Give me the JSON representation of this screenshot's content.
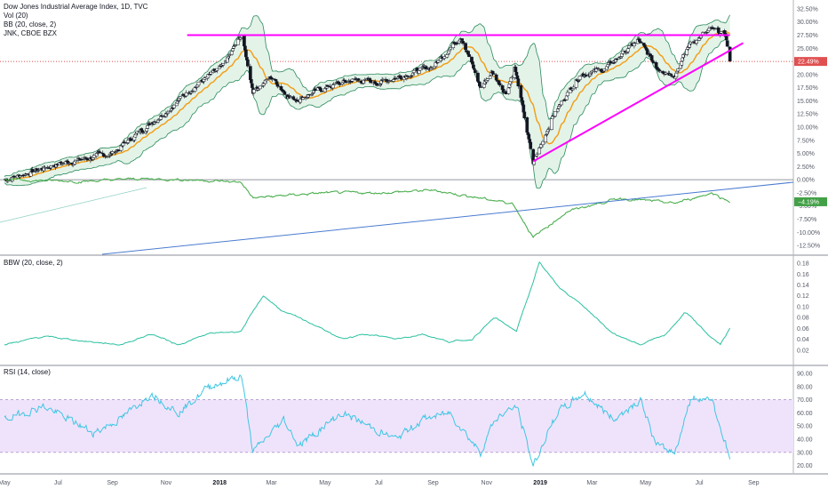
{
  "legend": {
    "title": "Dow Jones Industrial Average Index, 1D, TVC",
    "vol": "Vol (20)",
    "bb": "BB (20, close, 2)",
    "jnk": "JNK, CBOE BZX",
    "bbw": "BBW (20, close, 2)",
    "rsi": "RSI (14, close)"
  },
  "badges": {
    "main": "22.49%",
    "jnk": "−4.19%"
  },
  "colors": {
    "up": "#26a69a",
    "down": "#ef5350",
    "candle": "#131722",
    "bb_line": "#2a8a5c",
    "bb_fill": "#e3f3e8",
    "basis": "#f39c12",
    "jnk": "#4caf50",
    "trend": "#ff00ff",
    "blue_line": "#4a7bd0",
    "bbw": "#2bc0a0",
    "rsi": "#3fc6e3",
    "rsi_band": "#efe3fb",
    "price_dash": "#e05050",
    "badge_main": "#e05050",
    "badge_jnk": "#43a047"
  },
  "chart_data": [
    {
      "type": "candlestick",
      "panel": "main",
      "y_unit": "% change",
      "ylim": [
        -13.5,
        33.5
      ],
      "y_ticks": [
        "32.50%",
        "30.00%",
        "27.50%",
        "25.00%",
        "22.50%",
        "20.00%",
        "17.50%",
        "15.00%",
        "12.50%",
        "10.00%",
        "7.50%",
        "5.00%",
        "2.50%",
        "0.00%",
        "-2.50%",
        "-5.00%",
        "-7.50%",
        "-10.00%",
        "-12.50%"
      ],
      "x_ticks": [
        "May",
        "Jul",
        "Sep",
        "Nov",
        "2018",
        "Mar",
        "May",
        "Jul",
        "Sep",
        "Nov",
        "2019",
        "Mar",
        "May",
        "Jul",
        "Sep"
      ],
      "x_bold_ticks": [
        "2018",
        "2019"
      ],
      "close_path": [
        [
          "2017-05-01",
          0.0
        ],
        [
          "2017-06-01",
          1.5
        ],
        [
          "2017-07-01",
          3.0
        ],
        [
          "2017-08-01",
          4.0
        ],
        [
          "2017-09-01",
          5.0
        ],
        [
          "2017-10-01",
          9.0
        ],
        [
          "2017-11-01",
          13.0
        ],
        [
          "2017-12-01",
          17.5
        ],
        [
          "2018-01-05",
          21.5
        ],
        [
          "2018-01-26",
          27.5
        ],
        [
          "2018-02-08",
          17.0
        ],
        [
          "2018-03-01",
          19.5
        ],
        [
          "2018-03-23",
          15.5
        ],
        [
          "2018-04-02",
          15.5
        ],
        [
          "2018-05-01",
          17.5
        ],
        [
          "2018-06-01",
          19.0
        ],
        [
          "2018-07-01",
          18.5
        ],
        [
          "2018-08-01",
          20.0
        ],
        [
          "2018-09-01",
          21.5
        ],
        [
          "2018-10-03",
          27.5
        ],
        [
          "2018-10-25",
          17.5
        ],
        [
          "2018-11-07",
          20.5
        ],
        [
          "2018-11-23",
          16.5
        ],
        [
          "2018-12-03",
          21.5
        ],
        [
          "2018-12-24",
          3.0
        ],
        [
          "2019-01-15",
          12.0
        ],
        [
          "2019-02-15",
          20.0
        ],
        [
          "2019-03-15",
          21.0
        ],
        [
          "2019-04-23",
          26.5
        ],
        [
          "2019-05-13",
          21.5
        ],
        [
          "2019-06-03",
          20.0
        ],
        [
          "2019-06-21",
          26.0
        ],
        [
          "2019-07-15",
          28.5
        ],
        [
          "2019-07-31",
          27.5
        ],
        [
          "2019-08-05",
          22.5
        ]
      ],
      "resistance_line": {
        "from": [
          "2017-11-25",
          27.5
        ],
        "to": [
          "2019-08-05",
          27.5
        ]
      },
      "support_line": {
        "from": [
          "2018-12-24",
          3.5
        ],
        "to": [
          "2019-08-20",
          26.0
        ]
      },
      "last_value": 22.49
    },
    {
      "type": "line",
      "panel": "main",
      "series": [
        {
          "name": "JNK, CBOE BZX",
          "values_by_date": [
            [
              "2017-05-01",
              0.0
            ],
            [
              "2017-08-01",
              -0.3
            ],
            [
              "2017-10-01",
              0.2
            ],
            [
              "2017-12-01",
              0.0
            ],
            [
              "2018-01-26",
              -0.5
            ],
            [
              "2018-02-08",
              -3.5
            ],
            [
              "2018-03-15",
              -3.0
            ],
            [
              "2018-05-01",
              -2.5
            ],
            [
              "2018-07-01",
              -2.5
            ],
            [
              "2018-09-01",
              -2.0
            ],
            [
              "2018-10-25",
              -3.5
            ],
            [
              "2018-12-01",
              -4.5
            ],
            [
              "2018-12-24",
              -11.0
            ],
            [
              "2019-02-01",
              -6.0
            ],
            [
              "2019-04-01",
              -3.5
            ],
            [
              "2019-06-03",
              -4.5
            ],
            [
              "2019-07-15",
              -2.5
            ],
            [
              "2019-08-05",
              -4.19
            ]
          ]
        }
      ],
      "last_value": -4.19
    },
    {
      "type": "line",
      "panel": "BBW (20, close, 2)",
      "ylim": [
        0.0,
        0.185
      ],
      "y_ticks": [
        "0.18",
        "0.16",
        "0.14",
        "0.12",
        "0.10",
        "0.08",
        "0.06",
        "0.04",
        "0.02"
      ],
      "series": [
        {
          "name": "BBW (20, close, 2)",
          "values_by_date": [
            [
              "2017-05-01",
              0.03
            ],
            [
              "2017-06-15",
              0.045
            ],
            [
              "2017-08-10",
              0.035
            ],
            [
              "2017-09-10",
              0.03
            ],
            [
              "2017-10-15",
              0.05
            ],
            [
              "2017-11-15",
              0.03
            ],
            [
              "2017-12-20",
              0.05
            ],
            [
              "2018-01-25",
              0.055
            ],
            [
              "2018-02-20",
              0.12
            ],
            [
              "2018-03-15",
              0.09
            ],
            [
              "2018-04-15",
              0.07
            ],
            [
              "2018-05-20",
              0.04
            ],
            [
              "2018-06-20",
              0.05
            ],
            [
              "2018-07-20",
              0.04
            ],
            [
              "2018-08-20",
              0.05
            ],
            [
              "2018-09-20",
              0.035
            ],
            [
              "2018-10-15",
              0.04
            ],
            [
              "2018-11-10",
              0.08
            ],
            [
              "2018-12-05",
              0.055
            ],
            [
              "2018-12-31",
              0.18
            ],
            [
              "2019-01-20",
              0.14
            ],
            [
              "2019-02-20",
              0.1
            ],
            [
              "2019-03-25",
              0.05
            ],
            [
              "2019-04-25",
              0.03
            ],
            [
              "2019-05-25",
              0.05
            ],
            [
              "2019-06-15",
              0.09
            ],
            [
              "2019-07-10",
              0.05
            ],
            [
              "2019-07-25",
              0.03
            ],
            [
              "2019-08-05",
              0.06
            ]
          ]
        }
      ]
    },
    {
      "type": "line",
      "panel": "RSI (14, close)",
      "ylim": [
        17.0,
        92.0
      ],
      "band": [
        30,
        70
      ],
      "y_ticks": [
        "90.00",
        "80.00",
        "70.00",
        "60.00",
        "50.00",
        "40.00",
        "30.00",
        "20.00"
      ],
      "series": [
        {
          "name": "RSI (14, close)",
          "values_by_date": [
            [
              "2017-05-01",
              55
            ],
            [
              "2017-06-15",
              65
            ],
            [
              "2017-08-10",
              45
            ],
            [
              "2017-09-10",
              55
            ],
            [
              "2017-10-15",
              75
            ],
            [
              "2017-11-15",
              60
            ],
            [
              "2017-12-20",
              80
            ],
            [
              "2018-01-26",
              88
            ],
            [
              "2018-02-08",
              30
            ],
            [
              "2018-03-15",
              55
            ],
            [
              "2018-04-01",
              35
            ],
            [
              "2018-05-20",
              60
            ],
            [
              "2018-06-20",
              50
            ],
            [
              "2018-07-20",
              40
            ],
            [
              "2018-08-20",
              55
            ],
            [
              "2018-09-20",
              60
            ],
            [
              "2018-10-25",
              30
            ],
            [
              "2018-11-10",
              55
            ],
            [
              "2018-12-05",
              65
            ],
            [
              "2018-12-24",
              20
            ],
            [
              "2019-01-20",
              60
            ],
            [
              "2019-02-20",
              75
            ],
            [
              "2019-03-25",
              55
            ],
            [
              "2019-04-25",
              70
            ],
            [
              "2019-05-13",
              35
            ],
            [
              "2019-06-03",
              30
            ],
            [
              "2019-06-21",
              70
            ],
            [
              "2019-07-15",
              72
            ],
            [
              "2019-08-05",
              25
            ]
          ]
        }
      ]
    }
  ]
}
